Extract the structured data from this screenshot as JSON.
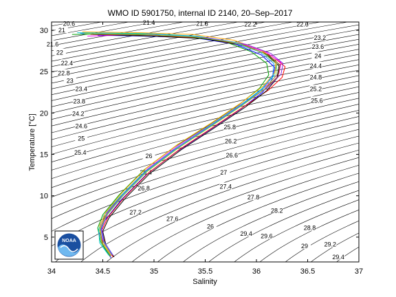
{
  "chart_data": {
    "type": "line",
    "title": "WMO ID 5901750, internal ID 2140, 20–Sep–2017",
    "xlabel": "Salinity",
    "ylabel": "Temperature [°C]",
    "xlim": [
      34,
      37
    ],
    "ylim": [
      2,
      31
    ],
    "xticks": [
      34,
      34.5,
      35,
      35.5,
      36,
      36.5,
      37
    ],
    "xtick_labels": [
      "34",
      "34.5",
      "35",
      "35.5",
      "36",
      "36.5",
      "37"
    ],
    "yticks": [
      5,
      10,
      15,
      20,
      25,
      30
    ],
    "ytick_labels": [
      "5",
      "10",
      "15",
      "20",
      "25",
      "30"
    ],
    "grid": false,
    "isopycnals": {
      "description_values": [
        20.6,
        21,
        21.4,
        21.8,
        22.2,
        22.6,
        23,
        23.4,
        23.8,
        24.2,
        24.6,
        25,
        25.4,
        25.8,
        26.2,
        26.6,
        27,
        27.4,
        27.8,
        28.2,
        28.6,
        29,
        29.4
      ],
      "labels": [
        {
          "text": "20.6",
          "s": 34.17,
          "t": 30.8
        },
        {
          "text": "21",
          "s": 34.1,
          "t": 30.0
        },
        {
          "text": "21.4",
          "s": 34.95,
          "t": 30.9
        },
        {
          "text": "21.8",
          "s": 35.47,
          "t": 30.8
        },
        {
          "text": "22.2",
          "s": 35.94,
          "t": 30.7
        },
        {
          "text": "22.6",
          "s": 36.45,
          "t": 30.7
        },
        {
          "text": "21.6",
          "s": 34.01,
          "t": 28.3
        },
        {
          "text": "22",
          "s": 34.08,
          "t": 27.3
        },
        {
          "text": "22.4",
          "s": 34.15,
          "t": 26.0
        },
        {
          "text": "22.8",
          "s": 34.12,
          "t": 24.8
        },
        {
          "text": "23",
          "s": 34.18,
          "t": 23.9
        },
        {
          "text": "23.2",
          "s": 36.62,
          "t": 29.1
        },
        {
          "text": "23.6",
          "s": 36.6,
          "t": 28.0
        },
        {
          "text": "24",
          "s": 36.6,
          "t": 26.9
        },
        {
          "text": "24.4",
          "s": 36.58,
          "t": 25.7
        },
        {
          "text": "24.8",
          "s": 36.58,
          "t": 24.3
        },
        {
          "text": "25.2",
          "s": 36.58,
          "t": 22.9
        },
        {
          "text": "25.6",
          "s": 36.59,
          "t": 21.5
        },
        {
          "text": "23.4",
          "s": 34.29,
          "t": 22.9
        },
        {
          "text": "23.8",
          "s": 34.27,
          "t": 21.4
        },
        {
          "text": "24.2",
          "s": 34.26,
          "t": 19.9
        },
        {
          "text": "24.6",
          "s": 34.29,
          "t": 18.4
        },
        {
          "text": "25",
          "s": 34.29,
          "t": 16.9
        },
        {
          "text": "25.4",
          "s": 34.28,
          "t": 15.2
        },
        {
          "text": "25.8",
          "s": 35.74,
          "t": 18.3
        },
        {
          "text": "26.2",
          "s": 35.75,
          "t": 16.6
        },
        {
          "text": "26.6",
          "s": 35.76,
          "t": 14.9
        },
        {
          "text": "26",
          "s": 34.95,
          "t": 14.8
        },
        {
          "text": "26.4",
          "s": 34.92,
          "t": 12.8
        },
        {
          "text": "27",
          "s": 35.68,
          "t": 12.8
        },
        {
          "text": "27.4",
          "s": 35.7,
          "t": 11.1
        },
        {
          "text": "26.8",
          "s": 34.9,
          "t": 10.9
        },
        {
          "text": "27.8",
          "s": 35.97,
          "t": 9.8
        },
        {
          "text": "27.2",
          "s": 34.82,
          "t": 8.0
        },
        {
          "text": "28.2",
          "s": 36.2,
          "t": 8.2
        },
        {
          "text": "27.6",
          "s": 35.18,
          "t": 7.2
        },
        {
          "text": "26",
          "s": 35.55,
          "t": 6.3
        },
        {
          "text": "28.8",
          "s": 36.52,
          "t": 6.1
        },
        {
          "text": "29.4",
          "s": 35.9,
          "t": 5.4
        },
        {
          "text": "29.6",
          "s": 36.1,
          "t": 5.1
        },
        {
          "text": "29",
          "s": 36.47,
          "t": 3.9
        },
        {
          "text": "29.2",
          "s": 36.72,
          "t": 4.1
        },
        {
          "text": "29.4",
          "s": 36.8,
          "t": 2.6
        }
      ]
    },
    "series": [
      {
        "color": "#0000ff",
        "values": [
          [
            34.58,
            2.5
          ],
          [
            34.5,
            4.0
          ],
          [
            34.47,
            5.5
          ],
          [
            34.52,
            7.0
          ],
          [
            34.68,
            9.5
          ],
          [
            34.92,
            12.5
          ],
          [
            35.22,
            15.3
          ],
          [
            35.55,
            18.0
          ],
          [
            35.85,
            20.5
          ],
          [
            36.06,
            22.5
          ],
          [
            36.15,
            24.0
          ],
          [
            36.18,
            25.5
          ],
          [
            36.05,
            27.0
          ],
          [
            35.8,
            28.3
          ],
          [
            35.4,
            29.1
          ],
          [
            34.9,
            29.3
          ],
          [
            34.45,
            29.4
          ]
        ]
      },
      {
        "color": "#ff0000",
        "values": [
          [
            34.6,
            2.6
          ],
          [
            34.52,
            4.2
          ],
          [
            34.49,
            5.8
          ],
          [
            34.55,
            7.4
          ],
          [
            34.71,
            9.8
          ],
          [
            34.95,
            12.8
          ],
          [
            35.25,
            15.6
          ],
          [
            35.58,
            18.3
          ],
          [
            35.88,
            20.8
          ],
          [
            36.12,
            22.8
          ],
          [
            36.25,
            24.3
          ],
          [
            36.28,
            25.6
          ],
          [
            36.15,
            26.9
          ],
          [
            35.9,
            28.1
          ],
          [
            35.5,
            29.0
          ],
          [
            35.0,
            29.4
          ],
          [
            34.3,
            29.6
          ]
        ]
      },
      {
        "color": "#00a000",
        "values": [
          [
            34.57,
            2.7
          ],
          [
            34.48,
            4.4
          ],
          [
            34.45,
            6.1
          ],
          [
            34.5,
            7.7
          ],
          [
            34.66,
            10.1
          ],
          [
            34.9,
            13.1
          ],
          [
            35.2,
            15.9
          ],
          [
            35.53,
            18.5
          ],
          [
            35.83,
            21.0
          ],
          [
            36.03,
            23.0
          ],
          [
            36.12,
            24.6
          ],
          [
            36.1,
            26.0
          ],
          [
            35.95,
            27.4
          ],
          [
            35.7,
            28.6
          ],
          [
            35.3,
            29.3
          ],
          [
            34.8,
            29.6
          ],
          [
            34.2,
            29.5
          ]
        ]
      },
      {
        "color": "#ff00ff",
        "values": [
          [
            34.59,
            2.9
          ],
          [
            34.5,
            4.6
          ],
          [
            34.48,
            6.3
          ],
          [
            34.54,
            7.9
          ],
          [
            34.7,
            10.3
          ],
          [
            34.94,
            13.3
          ],
          [
            35.24,
            16.1
          ],
          [
            35.57,
            18.7
          ],
          [
            35.87,
            21.2
          ],
          [
            36.09,
            23.2
          ],
          [
            36.22,
            24.8
          ],
          [
            36.24,
            26.1
          ],
          [
            36.1,
            27.3
          ],
          [
            35.85,
            28.4
          ],
          [
            35.45,
            29.2
          ],
          [
            34.95,
            29.5
          ],
          [
            34.35,
            29.3
          ]
        ]
      },
      {
        "color": "#00c8c8",
        "values": [
          [
            34.56,
            2.8
          ],
          [
            34.47,
            4.3
          ],
          [
            34.46,
            5.9
          ],
          [
            34.51,
            7.6
          ],
          [
            34.67,
            9.9
          ],
          [
            34.91,
            12.9
          ],
          [
            35.21,
            15.7
          ],
          [
            35.54,
            18.4
          ],
          [
            35.84,
            20.9
          ],
          [
            36.05,
            22.9
          ],
          [
            36.17,
            24.5
          ],
          [
            36.2,
            25.9
          ],
          [
            36.08,
            27.2
          ],
          [
            35.82,
            28.5
          ],
          [
            35.42,
            29.3
          ],
          [
            34.92,
            29.6
          ],
          [
            34.25,
            29.7
          ]
        ]
      },
      {
        "color": "#000000",
        "values": [
          [
            34.61,
            2.6
          ],
          [
            34.53,
            4.1
          ],
          [
            34.5,
            5.7
          ],
          [
            34.56,
            7.3
          ],
          [
            34.72,
            9.7
          ],
          [
            34.96,
            12.7
          ],
          [
            35.26,
            15.5
          ],
          [
            35.59,
            18.2
          ],
          [
            35.89,
            20.7
          ],
          [
            36.1,
            22.7
          ],
          [
            36.2,
            24.2
          ],
          [
            36.22,
            25.7
          ],
          [
            36.1,
            27.1
          ],
          [
            35.87,
            28.2
          ],
          [
            35.48,
            29.0
          ],
          [
            34.98,
            29.3
          ],
          [
            34.4,
            29.5
          ]
        ]
      },
      {
        "color": "#ffa500",
        "values": [
          [
            34.57,
            3.0
          ],
          [
            34.49,
            4.7
          ],
          [
            34.47,
            6.4
          ],
          [
            34.53,
            8.0
          ],
          [
            34.69,
            10.4
          ],
          [
            34.93,
            13.4
          ],
          [
            35.23,
            16.2
          ],
          [
            35.56,
            18.8
          ],
          [
            35.86,
            21.3
          ],
          [
            36.07,
            23.3
          ],
          [
            36.18,
            24.9
          ],
          [
            36.19,
            26.3
          ],
          [
            36.05,
            27.6
          ],
          [
            35.78,
            28.8
          ],
          [
            35.38,
            29.5
          ],
          [
            34.88,
            29.7
          ],
          [
            34.3,
            29.8
          ]
        ]
      },
      {
        "color": "#8a2be2",
        "values": [
          [
            34.6,
            2.8
          ],
          [
            34.51,
            4.5
          ],
          [
            34.49,
            6.2
          ],
          [
            34.55,
            7.8
          ],
          [
            34.71,
            10.2
          ],
          [
            34.95,
            13.2
          ],
          [
            35.25,
            16.0
          ],
          [
            35.58,
            18.6
          ],
          [
            35.88,
            21.1
          ],
          [
            36.11,
            23.1
          ],
          [
            36.24,
            24.7
          ],
          [
            36.26,
            26.0
          ],
          [
            36.14,
            27.2
          ],
          [
            35.9,
            28.3
          ],
          [
            35.52,
            29.1
          ],
          [
            35.02,
            29.4
          ],
          [
            34.45,
            29.6
          ]
        ]
      },
      {
        "color": "#8b4513",
        "values": [
          [
            34.58,
            2.7
          ],
          [
            34.5,
            4.2
          ],
          [
            34.47,
            5.8
          ],
          [
            34.52,
            7.5
          ],
          [
            34.68,
            9.9
          ],
          [
            34.92,
            12.9
          ],
          [
            35.22,
            15.7
          ],
          [
            35.55,
            18.4
          ],
          [
            35.85,
            20.9
          ],
          [
            36.08,
            22.9
          ],
          [
            36.21,
            24.4
          ],
          [
            36.23,
            25.8
          ],
          [
            36.12,
            27.0
          ],
          [
            35.88,
            28.2
          ],
          [
            35.48,
            29.1
          ],
          [
            35.0,
            29.4
          ],
          [
            34.38,
            29.5
          ]
        ]
      },
      {
        "color": "#1e90ff",
        "values": [
          [
            34.59,
            2.9
          ],
          [
            34.51,
            4.4
          ],
          [
            34.48,
            6.0
          ],
          [
            34.53,
            7.6
          ],
          [
            34.69,
            10.0
          ],
          [
            34.93,
            13.0
          ],
          [
            35.23,
            15.8
          ],
          [
            35.56,
            18.5
          ],
          [
            35.86,
            21.0
          ],
          [
            36.07,
            23.0
          ],
          [
            36.16,
            24.6
          ],
          [
            36.17,
            26.0
          ],
          [
            36.03,
            27.4
          ],
          [
            35.75,
            28.6
          ],
          [
            35.35,
            29.3
          ],
          [
            34.85,
            29.5
          ],
          [
            34.28,
            29.6
          ]
        ]
      },
      {
        "color": "#9acd32",
        "values": [
          [
            34.58,
            2.8
          ],
          [
            34.49,
            4.3
          ],
          [
            34.47,
            5.9
          ],
          [
            34.53,
            7.5
          ],
          [
            34.69,
            9.9
          ],
          [
            34.93,
            12.9
          ],
          [
            35.23,
            15.7
          ],
          [
            35.56,
            18.4
          ],
          [
            35.86,
            20.9
          ],
          [
            36.08,
            22.9
          ],
          [
            36.19,
            24.5
          ],
          [
            36.2,
            25.9
          ],
          [
            36.06,
            27.3
          ],
          [
            35.8,
            28.5
          ],
          [
            35.4,
            29.2
          ],
          [
            34.9,
            29.5
          ],
          [
            34.32,
            29.6
          ]
        ]
      }
    ]
  },
  "logo": {
    "text": "NOAA"
  }
}
